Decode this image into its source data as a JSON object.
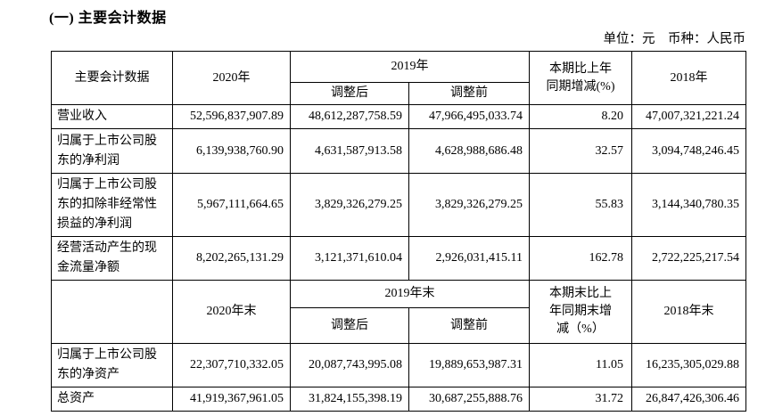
{
  "page": {
    "title": "(一) 主要会计数据",
    "unit_note": "单位：元　币种：人民币"
  },
  "table": {
    "section1": {
      "col_header": "主要会计数据",
      "year_current": "2020年",
      "year_prev_group": "2019年",
      "sub_adjusted": "调整后",
      "sub_before": "调整前",
      "change_header_lines": [
        "本期比上年",
        "同期增减(%)"
      ],
      "year_2018": "2018年",
      "rows": [
        {
          "label": "营业收入",
          "v2020": "52,596,837,907.89",
          "v2019_after": "48,612,287,758.59",
          "v2019_before": "47,966,495,033.74",
          "change": "8.20",
          "v2018": "47,007,321,221.24"
        },
        {
          "label": "归属于上市公司股东的净利润",
          "v2020": "6,139,938,760.90",
          "v2019_after": "4,631,587,913.58",
          "v2019_before": "4,628,988,686.48",
          "change": "32.57",
          "v2018": "3,094,748,246.45"
        },
        {
          "label": "归属于上市公司股东的扣除非经常性损益的净利润",
          "v2020": "5,967,111,664.65",
          "v2019_after": "3,829,326,279.25",
          "v2019_before": "3,829,326,279.25",
          "change": "55.83",
          "v2018": "3,144,340,780.35"
        },
        {
          "label": "经营活动产生的现金流量净额",
          "v2020": "8,202,265,131.29",
          "v2019_after": "3,121,371,610.04",
          "v2019_before": "2,926,031,415.11",
          "change": "162.78",
          "v2018": "2,722,225,217.54"
        }
      ]
    },
    "section2": {
      "col_header": "",
      "year_current": "2020年末",
      "year_prev_group": "2019年末",
      "sub_adjusted": "调整后",
      "sub_before": "调整前",
      "change_header_lines": [
        "本期末比上",
        "年同期末增",
        "减（%）"
      ],
      "year_2018": "2018年末",
      "rows": [
        {
          "label": "归属于上市公司股东的净资产",
          "v2020": "22,307,710,332.05",
          "v2019_after": "20,087,743,995.08",
          "v2019_before": "19,889,653,987.31",
          "change": "11.05",
          "v2018": "16,235,305,029.88"
        },
        {
          "label": "总资产",
          "v2020": "41,919,367,961.05",
          "v2019_after": "31,824,155,398.19",
          "v2019_before": "30,687,255,888.76",
          "change": "31.72",
          "v2018": "26,847,426,306.46"
        }
      ]
    }
  }
}
